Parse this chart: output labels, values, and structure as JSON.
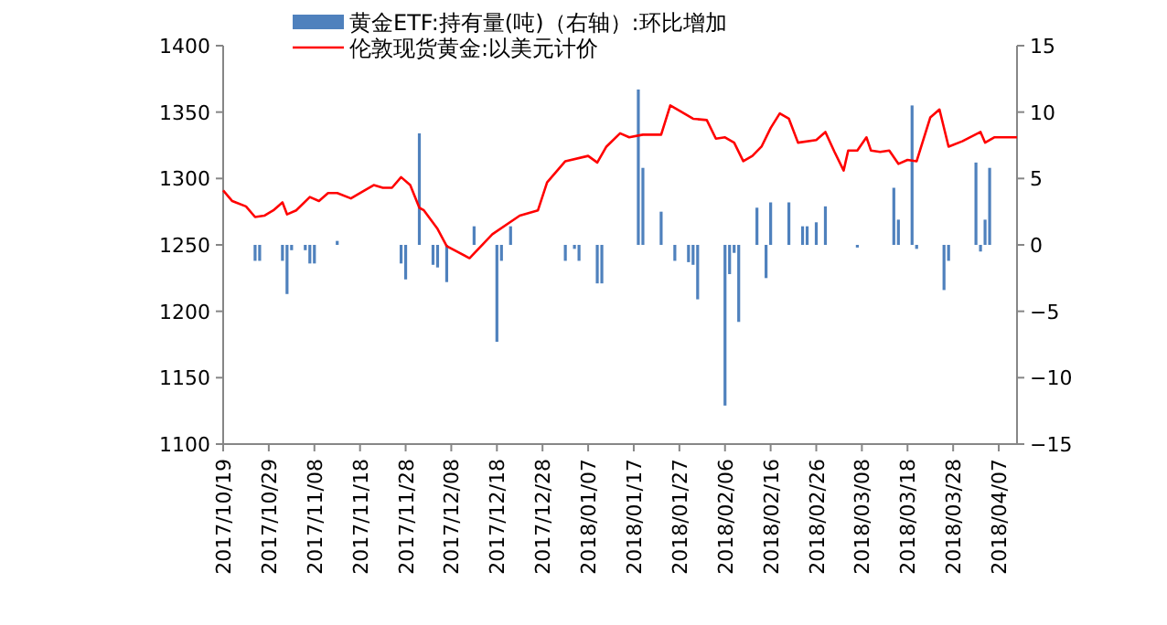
{
  "chart_data": {
    "type": "line",
    "legend": "top",
    "grid": false,
    "xlim": [
      "2017-10-19",
      "2018-04-11"
    ],
    "xticks": [
      {
        "value": "2017-10-19",
        "label": "2017/10/19"
      },
      {
        "value": "2017-10-29",
        "label": "2017/10/29"
      },
      {
        "value": "2017-11-08",
        "label": "2017/11/08"
      },
      {
        "value": "2017-11-18",
        "label": "2017/11/18"
      },
      {
        "value": "2017-11-28",
        "label": "2017/11/28"
      },
      {
        "value": "2017-12-08",
        "label": "2017/12/08"
      },
      {
        "value": "2017-12-18",
        "label": "2017/12/18"
      },
      {
        "value": "2017-12-28",
        "label": "2017/12/28"
      },
      {
        "value": "2018-01-07",
        "label": "2018/01/07"
      },
      {
        "value": "2018-01-17",
        "label": "2018/01/17"
      },
      {
        "value": "2018-01-27",
        "label": "2018/01/27"
      },
      {
        "value": "2018-02-06",
        "label": "2018/02/06"
      },
      {
        "value": "2018-02-16",
        "label": "2018/02/16"
      },
      {
        "value": "2018-02-26",
        "label": "2018/02/26"
      },
      {
        "value": "2018-03-08",
        "label": "2018/03/08"
      },
      {
        "value": "2018-03-18",
        "label": "2018/03/18"
      },
      {
        "value": "2018-03-28",
        "label": "2018/03/28"
      },
      {
        "value": "2018-04-07",
        "label": "2018/04/07"
      }
    ],
    "ylim": [
      1100,
      1400
    ],
    "yticks": [
      1100,
      1150,
      1200,
      1250,
      1300,
      1350,
      1400
    ],
    "y2lim": [
      -15,
      15
    ],
    "y2ticks": [
      -15,
      -10,
      -5,
      0,
      5,
      10,
      15
    ],
    "series": [
      {
        "name": "黄金ETF:持有量(吨)（右轴）:环比增加",
        "type": "bar",
        "axis": "y2",
        "color": "#4f81bd",
        "x": [
          "2017-10-26",
          "2017-10-27",
          "2017-11-01",
          "2017-11-02",
          "2017-11-03",
          "2017-11-06",
          "2017-11-07",
          "2017-11-08",
          "2017-11-13",
          "2017-11-27",
          "2017-11-28",
          "2017-12-01",
          "2017-12-04",
          "2017-12-05",
          "2017-12-07",
          "2017-12-13",
          "2017-12-18",
          "2017-12-19",
          "2017-12-21",
          "2018-01-02",
          "2018-01-04",
          "2018-01-05",
          "2018-01-09",
          "2018-01-10",
          "2018-01-18",
          "2018-01-19",
          "2018-01-23",
          "2018-01-26",
          "2018-01-29",
          "2018-01-30",
          "2018-01-31",
          "2018-02-06",
          "2018-02-07",
          "2018-02-08",
          "2018-02-09",
          "2018-02-13",
          "2018-02-15",
          "2018-02-16",
          "2018-02-20",
          "2018-02-23",
          "2018-02-24",
          "2018-02-26",
          "2018-02-28",
          "2018-03-07",
          "2018-03-15",
          "2018-03-16",
          "2018-03-19",
          "2018-03-20",
          "2018-03-26",
          "2018-03-27",
          "2018-04-02",
          "2018-04-03",
          "2018-04-04",
          "2018-04-05"
        ],
        "values": [
          -1.2,
          -1.2,
          -1.2,
          -3.7,
          -0.4,
          -0.4,
          -1.4,
          -1.4,
          0.3,
          -1.4,
          -2.6,
          8.4,
          -1.5,
          -1.7,
          -2.8,
          1.4,
          -7.3,
          -1.2,
          1.4,
          -1.2,
          -0.3,
          -1.2,
          -2.9,
          -2.9,
          11.7,
          5.8,
          2.5,
          -1.2,
          -1.3,
          -1.5,
          -4.1,
          -12.1,
          -2.2,
          -0.6,
          -5.8,
          2.8,
          -2.5,
          3.2,
          3.2,
          1.4,
          1.4,
          1.7,
          2.9,
          -0.2,
          4.3,
          1.9,
          10.5,
          -0.3,
          -3.4,
          -1.2,
          6.2,
          -0.5,
          1.9,
          5.8
        ]
      },
      {
        "name": "伦敦现货黄金:以美元计价",
        "color": "#ff0000",
        "x": [
          "2017-10-19",
          "2017-10-21",
          "2017-10-24",
          "2017-10-26",
          "2017-10-28",
          "2017-10-30",
          "2017-11-01",
          "2017-11-02",
          "2017-11-04",
          "2017-11-07",
          "2017-11-09",
          "2017-11-11",
          "2017-11-13",
          "2017-11-16",
          "2017-11-19",
          "2017-11-21",
          "2017-11-23",
          "2017-11-25",
          "2017-11-27",
          "2017-11-29",
          "2017-12-01",
          "2017-12-02",
          "2017-12-05",
          "2017-12-07",
          "2017-12-12",
          "2017-12-17",
          "2017-12-23",
          "2017-12-27",
          "2017-12-29",
          "2018-01-02",
          "2018-01-07",
          "2018-01-09",
          "2018-01-11",
          "2018-01-14",
          "2018-01-16",
          "2018-01-19",
          "2018-01-23",
          "2018-01-25",
          "2018-01-27",
          "2018-01-30",
          "2018-02-02",
          "2018-02-04",
          "2018-02-06",
          "2018-02-08",
          "2018-02-10",
          "2018-02-12",
          "2018-02-14",
          "2018-02-16",
          "2018-02-18",
          "2018-02-20",
          "2018-02-22",
          "2018-02-26",
          "2018-02-28",
          "2018-03-02",
          "2018-03-04",
          "2018-03-05",
          "2018-03-07",
          "2018-03-09",
          "2018-03-10",
          "2018-03-12",
          "2018-03-14",
          "2018-03-16",
          "2018-03-18",
          "2018-03-20",
          "2018-03-23",
          "2018-03-25",
          "2018-03-27",
          "2018-03-30",
          "2018-04-03",
          "2018-04-04",
          "2018-04-06",
          "2018-04-09",
          "2018-04-11"
        ],
        "values": [
          1291,
          1283,
          1279,
          1271,
          1272,
          1276,
          1282,
          1273,
          1276,
          1286,
          1283,
          1289,
          1289,
          1285,
          1291,
          1295,
          1293,
          1293,
          1301,
          1295,
          1278,
          1276,
          1262,
          1249,
          1240,
          1258,
          1272,
          1276,
          1297,
          1313,
          1317,
          1312,
          1324,
          1334,
          1331,
          1333,
          1333,
          1355,
          1351,
          1345,
          1344,
          1330,
          1331,
          1327,
          1313,
          1317,
          1324,
          1338,
          1349,
          1345,
          1327,
          1329,
          1335,
          1320,
          1306,
          1321,
          1321,
          1331,
          1321,
          1320,
          1321,
          1311,
          1314,
          1313,
          1346,
          1352,
          1324,
          1328,
          1335,
          1327,
          1331,
          1331,
          1331
        ]
      }
    ]
  }
}
